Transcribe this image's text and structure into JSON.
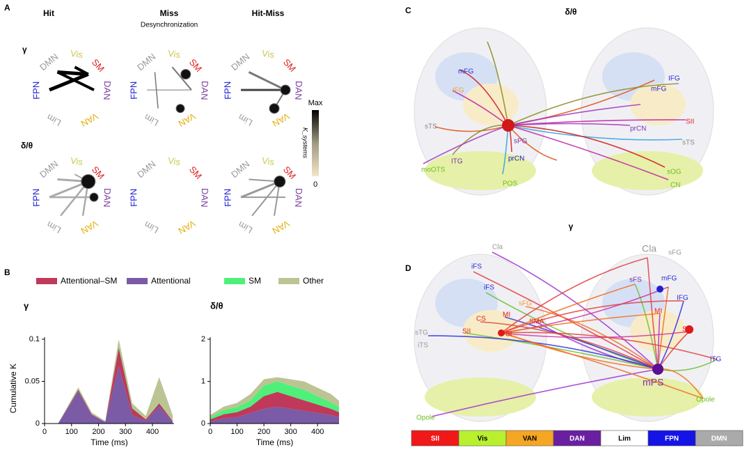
{
  "panel_labels": [
    "A",
    "B",
    "C",
    "D"
  ],
  "panel_a": {
    "columns": [
      "Hit",
      "Miss",
      "Hit-Miss"
    ],
    "subtitle": "Desynchronization",
    "rows": [
      "γ",
      "δ/θ"
    ],
    "networks": [
      {
        "name": "DMN",
        "color": "#9a9a9a"
      },
      {
        "name": "Vis",
        "color": "#c9c957"
      },
      {
        "name": "SM",
        "color": "#e02020"
      },
      {
        "name": "DAN",
        "color": "#7a3d9e"
      },
      {
        "name": "VAN",
        "color": "#e0b010"
      },
      {
        "name": "Lim",
        "color": "#9a9a9a"
      },
      {
        "name": "FPN",
        "color": "#2020d0"
      }
    ],
    "colorbar": {
      "max_label": "Max",
      "min_label": "0",
      "label": "K_systems"
    }
  },
  "chart_data": [
    {
      "type": "area",
      "title": "γ",
      "ylabel": "Cumulative K",
      "xlabel": "Time (ms)",
      "x": [
        50,
        125,
        175,
        225,
        275,
        325,
        375,
        425,
        475
      ],
      "series": [
        {
          "name": "Attentional",
          "color": "#7b5aa6",
          "values": [
            0,
            0.038,
            0.01,
            0.002,
            0.068,
            0.01,
            0.003,
            0.02,
            0.002
          ]
        },
        {
          "name": "Attentional–SM",
          "color": "#c0395a",
          "values": [
            0,
            0.002,
            0.001,
            0,
            0.022,
            0.008,
            0.002,
            0.004,
            0.001
          ]
        },
        {
          "name": "SM",
          "color": "#4ef07a",
          "values": [
            0,
            0.001,
            0,
            0,
            0.002,
            0.001,
            0,
            0.001,
            0
          ]
        },
        {
          "name": "Other",
          "color": "#bcc494",
          "values": [
            0,
            0.002,
            0.002,
            0.001,
            0.008,
            0.005,
            0.004,
            0.03,
            0.007
          ]
        }
      ],
      "xlim": [
        0,
        480
      ],
      "ylim": [
        0,
        0.1
      ],
      "xticks": [
        0,
        100,
        200,
        300,
        400
      ],
      "yticks": [
        0,
        0.05,
        0.1
      ]
    },
    {
      "type": "area",
      "title": "δ/θ",
      "xlabel": "Time (ms)",
      "x": [
        0,
        50,
        100,
        150,
        200,
        250,
        300,
        350,
        400,
        450,
        480
      ],
      "series": [
        {
          "color": "#7b5aa6",
          "values": [
            0.05,
            0.12,
            0.15,
            0.25,
            0.35,
            0.4,
            0.35,
            0.3,
            0.25,
            0.2,
            0.15
          ]
        },
        {
          "color": "#c0395a",
          "values": [
            0.05,
            0.1,
            0.12,
            0.15,
            0.3,
            0.35,
            0.3,
            0.25,
            0.2,
            0.15,
            0.12
          ]
        },
        {
          "color": "#4ef07a",
          "values": [
            0.05,
            0.1,
            0.12,
            0.15,
            0.25,
            0.25,
            0.25,
            0.25,
            0.2,
            0.15,
            0.12
          ]
        },
        {
          "color": "#bcc494",
          "values": [
            0.05,
            0.08,
            0.1,
            0.15,
            0.15,
            0.1,
            0.15,
            0.2,
            0.2,
            0.2,
            0.15
          ]
        }
      ],
      "xlim": [
        0,
        480
      ],
      "ylim": [
        0,
        2
      ],
      "xticks": [
        0,
        100,
        200,
        300,
        400
      ],
      "yticks": [
        0,
        1,
        2
      ]
    }
  ],
  "panel_c": {
    "title": "δ/θ",
    "labels": [
      "mFG",
      "IFG",
      "sTS",
      "ITG",
      "moOTS",
      "POS",
      "prCN",
      "sPG",
      "mFG",
      "IFG",
      "SII",
      "prCN",
      "sTS",
      "sOG",
      "CN"
    ]
  },
  "panel_d": {
    "title": "γ",
    "labels": [
      "Cla",
      "iFS",
      "iFS",
      "sFG",
      "MI",
      "SMA",
      "CS",
      "SII",
      "SI",
      "sTG",
      "iTS",
      "Opole",
      "Cla",
      "sFG",
      "sFS",
      "mFG",
      "IFG",
      "MI",
      "SII",
      "iTG",
      "mPS",
      "Opole"
    ]
  },
  "network_legend": [
    {
      "name": "SII",
      "color": "#f01818"
    },
    {
      "name": "Vis",
      "color": "#b8f030"
    },
    {
      "name": "VAN",
      "color": "#f5a623"
    },
    {
      "name": "DAN",
      "color": "#6a1fa0"
    },
    {
      "name": "Lim",
      "color": "#ffffff"
    },
    {
      "name": "FPN",
      "color": "#1414e6"
    },
    {
      "name": "DMN",
      "color": "#aaaaaa"
    }
  ]
}
